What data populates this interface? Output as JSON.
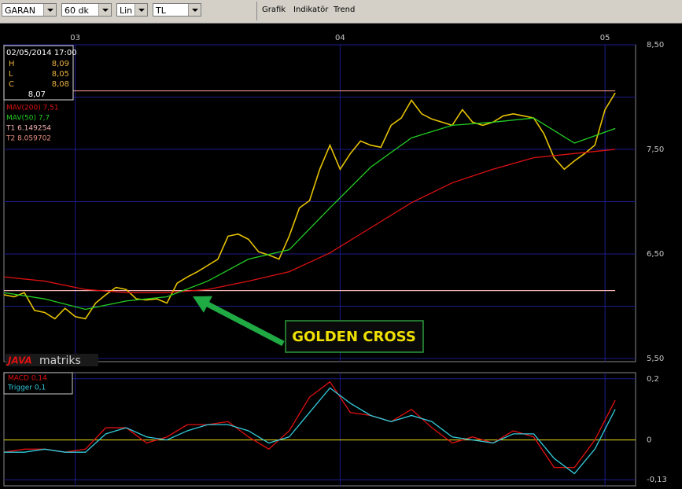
{
  "toolbar": {
    "dropdowns": [
      "GARAN",
      "60 dk",
      "Lin",
      "TL"
    ],
    "menus": [
      "Grafik",
      "Indikatör",
      "Trend"
    ]
  },
  "info": {
    "date": "02/05/2014 17:00",
    "rows": [
      {
        "label": "H",
        "value": "8,09"
      },
      {
        "label": "L",
        "value": "8,05"
      },
      {
        "label": "C",
        "value": "8,08"
      }
    ],
    "last": "8,07"
  },
  "logo": {
    "part1": "JAVA",
    "part2": "matriks"
  },
  "annotation": "GOLDEN CROSS",
  "chart_data": [
    {
      "type": "line",
      "xlim": [
        0,
        62
      ],
      "xticks": [
        {
          "value": 7,
          "label": "03"
        },
        {
          "value": 33,
          "label": "04"
        },
        {
          "value": 59,
          "label": "05"
        }
      ],
      "ylim": [
        5.5,
        8.5
      ],
      "yticks": [
        {
          "value": 5.5,
          "label": "5,50"
        },
        {
          "value": 6.5,
          "label": "6,50"
        },
        {
          "value": 7.5,
          "label": "7,50"
        },
        {
          "value": 8.5,
          "label": "8,50"
        }
      ],
      "minor_yticks": [
        6,
        7,
        8
      ],
      "series": [
        {
          "color": "#e6c200",
          "x": [
            0,
            1,
            2,
            3,
            4,
            5,
            6,
            7,
            8,
            9,
            10,
            11,
            12,
            13,
            14,
            15,
            16,
            17,
            18,
            19,
            20,
            21,
            22,
            23,
            24,
            25,
            26,
            27,
            28,
            29,
            30,
            31,
            32,
            33,
            34,
            35,
            36,
            37,
            38,
            39,
            40,
            41,
            42,
            43,
            44,
            45,
            46,
            47,
            48,
            49,
            50,
            51,
            52,
            53,
            54,
            55,
            56,
            57,
            58,
            59,
            60
          ],
          "values": [
            6.11,
            6.09,
            6.13,
            5.96,
            5.94,
            5.88,
            5.98,
            5.9,
            5.88,
            6.03,
            6.11,
            6.18,
            6.16,
            6.07,
            6.06,
            6.07,
            6.03,
            6.22,
            6.28,
            6.33,
            6.39,
            6.45,
            6.67,
            6.69,
            6.64,
            6.52,
            6.49,
            6.45,
            6.67,
            6.94,
            7.01,
            7.31,
            7.54,
            7.31,
            7.46,
            7.58,
            7.54,
            7.52,
            7.73,
            7.8,
            7.97,
            7.84,
            7.79,
            7.76,
            7.73,
            7.88,
            7.76,
            7.73,
            7.76,
            7.82,
            7.84,
            7.82,
            7.8,
            7.65,
            7.42,
            7.31,
            7.39,
            7.46,
            7.54,
            7.88,
            8.04
          ]
        },
        {
          "name": "MAV(200) 7,51",
          "color": "#dd1111",
          "x": [
            0,
            4,
            8,
            12,
            16,
            20,
            24,
            28,
            32,
            36,
            40,
            44,
            48,
            52,
            56,
            60
          ],
          "values": [
            6.28,
            6.24,
            6.16,
            6.13,
            6.13,
            6.16,
            6.24,
            6.33,
            6.51,
            6.75,
            6.99,
            7.18,
            7.31,
            7.42,
            7.46,
            7.5
          ]
        },
        {
          "name": "MAV(50) 7,7",
          "color": "#22cc22",
          "x": [
            0,
            4,
            8,
            12,
            16,
            20,
            24,
            28,
            32,
            36,
            40,
            44,
            48,
            52,
            56,
            60
          ],
          "values": [
            6.13,
            6.07,
            5.97,
            6.05,
            6.09,
            6.24,
            6.45,
            6.54,
            6.94,
            7.33,
            7.61,
            7.73,
            7.76,
            7.8,
            7.56,
            7.7
          ]
        }
      ],
      "hlines": [
        {
          "name": "T1 6.149254",
          "value": 6.149254,
          "color": "#f0b0b0"
        },
        {
          "name": "T2 8.059702",
          "value": 8.059702,
          "color": "#e89080"
        }
      ]
    },
    {
      "type": "line",
      "xlim": [
        0,
        62
      ],
      "ylim": [
        -0.15,
        0.22
      ],
      "yticks": [
        {
          "value": 0.2,
          "label": "0,2"
        },
        0,
        {
          "value": -0.13,
          "label": "-0,13"
        }
      ],
      "zero_line": "#e8e000",
      "series": [
        {
          "name": "MACD 0,14",
          "color": "#e01010",
          "x": [
            0,
            2,
            4,
            6,
            8,
            10,
            12,
            14,
            16,
            18,
            20,
            22,
            24,
            26,
            28,
            30,
            32,
            34,
            36,
            38,
            40,
            42,
            44,
            46,
            48,
            50,
            52,
            54,
            56,
            58,
            60
          ],
          "values": [
            -0.04,
            -0.03,
            -0.03,
            -0.04,
            -0.03,
            0.04,
            0.04,
            -0.01,
            0.01,
            0.05,
            0.05,
            0.06,
            0.01,
            -0.03,
            0.03,
            0.14,
            0.19,
            0.09,
            0.08,
            0.06,
            0.1,
            0.04,
            -0.01,
            0.01,
            -0.01,
            0.03,
            0.01,
            -0.09,
            -0.09,
            0.0,
            0.13
          ]
        },
        {
          "name": "Trigger 0,1",
          "color": "#33ccdd",
          "x": [
            0,
            2,
            4,
            6,
            8,
            10,
            12,
            14,
            16,
            18,
            20,
            22,
            24,
            26,
            28,
            30,
            32,
            34,
            36,
            38,
            40,
            42,
            44,
            46,
            48,
            50,
            52,
            54,
            56,
            58,
            60
          ],
          "values": [
            -0.04,
            -0.04,
            -0.03,
            -0.04,
            -0.04,
            0.02,
            0.04,
            0.01,
            0.0,
            0.03,
            0.05,
            0.05,
            0.03,
            -0.01,
            0.01,
            0.09,
            0.17,
            0.12,
            0.08,
            0.06,
            0.08,
            0.06,
            0.01,
            0.0,
            -0.01,
            0.02,
            0.02,
            -0.06,
            -0.11,
            -0.03,
            0.1
          ]
        }
      ]
    }
  ]
}
